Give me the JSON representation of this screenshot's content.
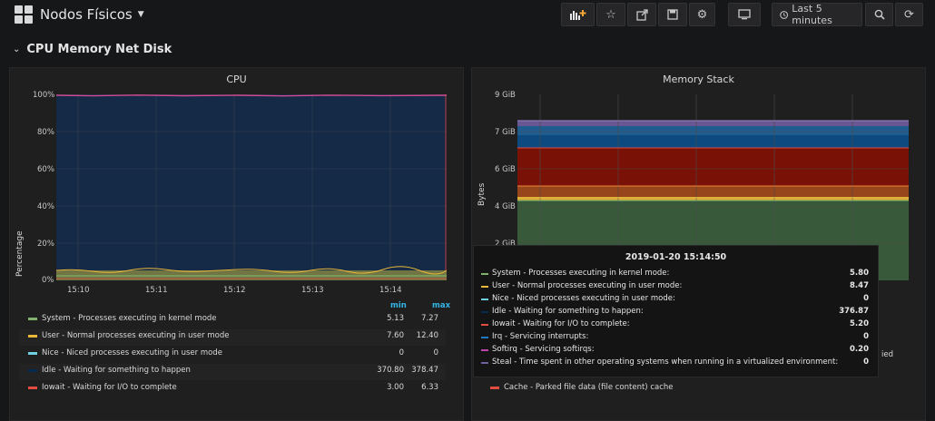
{
  "header": {
    "dashboard_title": "Nodos Físicos",
    "time_range": "Last 5 minutes",
    "buttons": [
      "add-panel-icon",
      "star-icon",
      "share-icon",
      "save-icon",
      "gear-icon",
      "tv-icon",
      "search-icon",
      "refresh-icon"
    ]
  },
  "row": {
    "title": "CPU Memory Net Disk"
  },
  "cpu_panel": {
    "title": "CPU",
    "ylabel": "Percentage",
    "yticks": [
      "100%",
      "80%",
      "60%",
      "40%",
      "20%",
      "0%"
    ],
    "xticks": [
      "15:10",
      "15:11",
      "15:12",
      "15:13",
      "15:14"
    ],
    "legend_headers": {
      "min": "min",
      "max": "max"
    },
    "legend": [
      {
        "label": "System - Processes executing in kernel mode",
        "min": "5.13",
        "max": "7.27",
        "color": "#7eb26d"
      },
      {
        "label": "User - Normal processes executing in user mode",
        "min": "7.60",
        "max": "12.40",
        "color": "#eab839"
      },
      {
        "label": "Nice - Niced processes executing in user mode",
        "min": "0",
        "max": "0",
        "color": "#6ed0e0"
      },
      {
        "label": "Idle - Waiting for something to happen",
        "min": "370.80",
        "max": "378.47",
        "color": "#052b51"
      },
      {
        "label": "Iowait - Waiting for I/O to complete",
        "min": "3.00",
        "max": "6.33",
        "color": "#e24d42"
      }
    ]
  },
  "memory_panel": {
    "title": "Memory Stack",
    "ylabel": "Bytes",
    "yticks": [
      "9 GiB",
      "7 GiB",
      "6 GiB",
      "4 GiB",
      "2 GiB"
    ],
    "legend_visible": [
      {
        "label": "Cache - Parked file data (file content) cache",
        "color": "#e24d42"
      }
    ],
    "cut_text": "ied"
  },
  "tooltip": {
    "time": "2019-01-20 15:14:50",
    "rows": [
      {
        "label": "System - Processes executing in kernel mode:",
        "value": "5.80",
        "color": "#7eb26d"
      },
      {
        "label": "User - Normal processes executing in user mode:",
        "value": "8.47",
        "color": "#eab839"
      },
      {
        "label": "Nice - Niced processes executing in user mode:",
        "value": "0",
        "color": "#6ed0e0"
      },
      {
        "label": "Idle - Waiting for something to happen:",
        "value": "376.87",
        "color": "#052b51"
      },
      {
        "label": "Iowait - Waiting for I/O to complete:",
        "value": "5.20",
        "color": "#e24d42"
      },
      {
        "label": "Irq - Servicing interrupts:",
        "value": "0",
        "color": "#1f78c1"
      },
      {
        "label": "Softirq - Servicing softirqs:",
        "value": "0.20",
        "color": "#ba43a9"
      },
      {
        "label": "Steal - Time spent in other operating systems when running in a virtualized environment:",
        "value": "0",
        "color": "#705da0"
      }
    ]
  }
}
